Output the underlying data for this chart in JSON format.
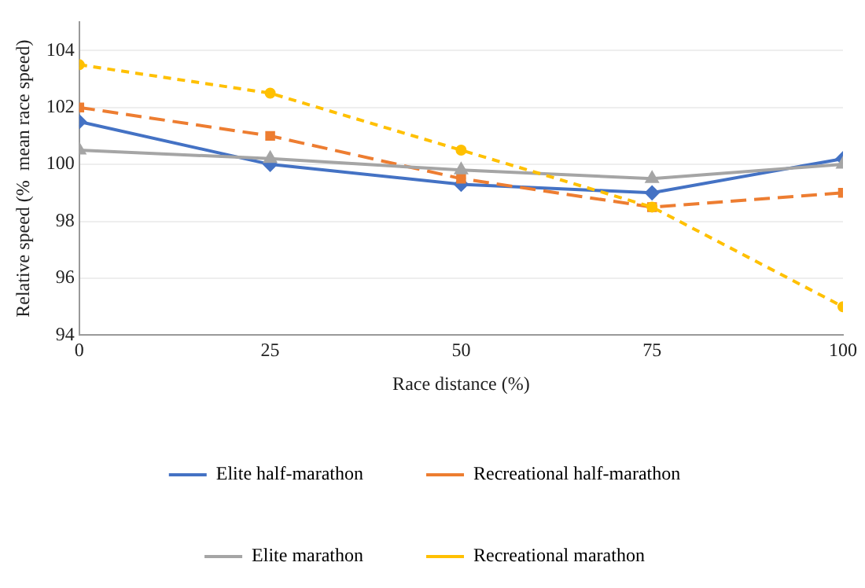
{
  "chart_data": {
    "type": "line",
    "xlabel": "Race distance (%)",
    "ylabel": "Relative speed (%  mean race speed)",
    "x": [
      0,
      25,
      50,
      75,
      100
    ],
    "xlim": [
      0,
      100
    ],
    "xticks": [
      0,
      25,
      50,
      75,
      100
    ],
    "ylim": [
      94,
      105
    ],
    "yticks": [
      94,
      96,
      98,
      100,
      102,
      104
    ],
    "grid": "y",
    "legend": "bottom",
    "series": [
      {
        "name": "Elite half-marathon",
        "color": "#4472c4",
        "marker": "diamond",
        "line_style": "solid",
        "values": [
          101.5,
          100,
          99.3,
          99,
          100.2
        ]
      },
      {
        "name": "Recreational half-marathon",
        "color": "#ed7d31",
        "marker": "square",
        "line_style": "dashed",
        "values": [
          102,
          101,
          99.5,
          98.5,
          99
        ]
      },
      {
        "name": "Elite marathon",
        "color": "#a5a5a5",
        "marker": "triangle",
        "line_style": "solid",
        "values": [
          100.5,
          100.2,
          99.8,
          99.5,
          100
        ]
      },
      {
        "name": "Recreational marathon",
        "color": "#ffc000",
        "marker": "circle",
        "line_style": "dotted",
        "values": [
          103.5,
          102.5,
          100.5,
          98.5,
          95
        ]
      }
    ]
  }
}
